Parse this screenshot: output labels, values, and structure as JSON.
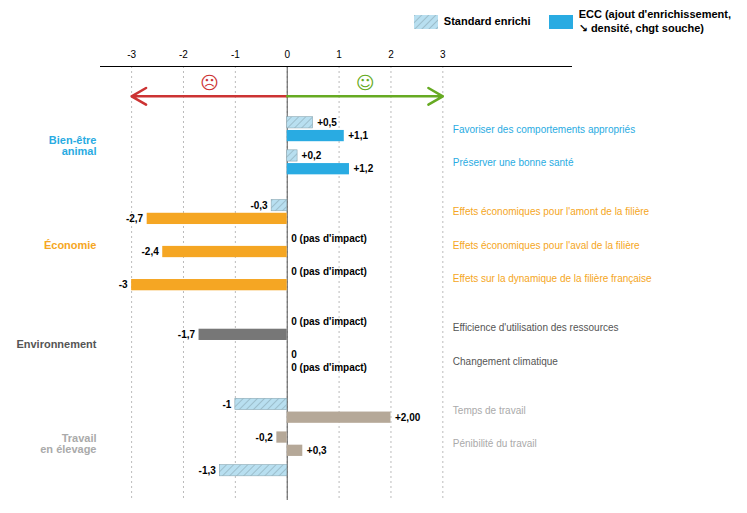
{
  "chart_data": {
    "type": "bar",
    "orientation": "horizontal",
    "categories": [
      "Favoriser des comportements appropriés",
      "Préserver une bonne santé",
      "Effets économiques pour l'amont de la filière",
      "Effets économiques pour l'aval de la filière",
      "Effets sur la dynamique de la filière française",
      "Efficience d'utilisation des ressources",
      "Changement climatique",
      "Temps de travail",
      "Pénibilité du travail",
      null
    ],
    "label_colors": [
      "#29ABE2",
      "#29ABE2",
      "#F5A623",
      "#F5A623",
      "#F5A623",
      "#555555",
      "#555555",
      "#AAAAAA",
      "#AAAAAA",
      "#AAAAAA"
    ],
    "groups": [
      {
        "label": "Bien-être\nanimal",
        "color": "#29ABE2",
        "size": 2
      },
      {
        "label": "Économie",
        "color": "#F5A623",
        "size": 3
      },
      {
        "label": "Environnement",
        "color": "#555555",
        "size": 2
      },
      {
        "label": "Travail\nen élevage",
        "color": "#AAAAAA",
        "size": 3
      }
    ],
    "series": [
      {
        "name": "Standard enrichi",
        "color": "#B8DFF0",
        "colors": [
          "#B8DFF0",
          "#B8DFF0",
          "#B8DFF0",
          "#F5A623",
          "#F5A623",
          "#777777",
          "#777777",
          "#B8DFF0",
          "#B5A898",
          "#B8DFF0"
        ],
        "values": [
          0.5,
          0.2,
          -0.3,
          0.0,
          0.0,
          0.0,
          0.0,
          -1.0,
          -0.2,
          -1.3
        ],
        "value_labels": [
          "+0,5",
          "+0,2",
          "-0,3",
          "0 (pas d'impact)",
          "0 (pas d'impact)",
          "0 (pas d'impact)",
          "0",
          "-1",
          "-0,2",
          "-1,3"
        ]
      },
      {
        "name": "ECC (ajout d'enrichissement,\n↘ densité, chgt souche)",
        "color": "#29ABE2",
        "colors": [
          "#29ABE2",
          "#29ABE2",
          "#F5A623",
          "#F5A623",
          "#F5A623",
          "#777777",
          "#777777",
          "#B5A898",
          "#B5A898",
          "#B5A898"
        ],
        "values": [
          1.1,
          1.2,
          -2.7,
          -2.4,
          -3.0,
          -1.7,
          0.0,
          2.0,
          0.3,
          0.0
        ],
        "value_labels": [
          "+1,1",
          "+1,2",
          "-2,7",
          "-2,4",
          "-3",
          "-1,7",
          "0 (pas d'impact)",
          "+2,00",
          "+0,3",
          null
        ]
      }
    ],
    "xlim": [
      -3.6,
      5.5
    ],
    "xticks": [
      -3,
      -2,
      -1,
      0,
      1,
      2,
      3
    ],
    "grid": true,
    "data_labels": true,
    "tick_labels": "x",
    "legend": "top",
    "annotations": [
      {
        "text": "☹",
        "color": "#CC3333",
        "direction": "left"
      },
      {
        "text": "☺",
        "color": "#66AA22",
        "direction": "right"
      }
    ]
  }
}
